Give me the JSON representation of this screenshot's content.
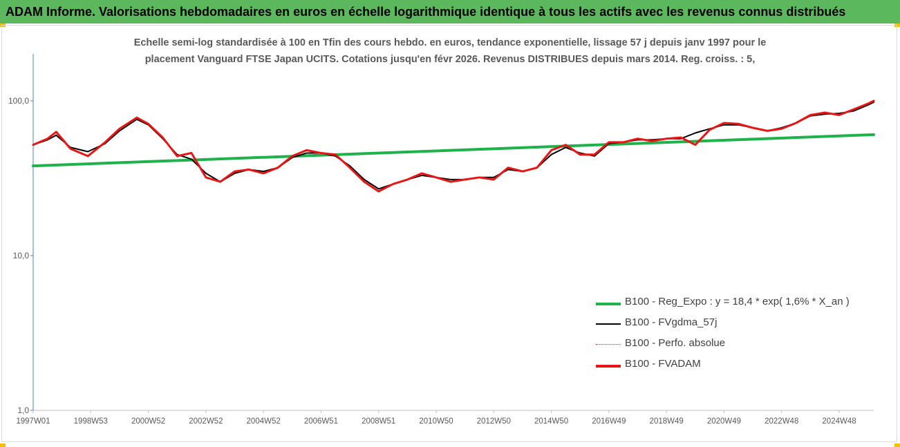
{
  "header": {
    "title": "ADAM Informe. Valorisations hebdomadaires en euros en échelle logarithmique identique à tous les actifs avec les revenus connus distribués"
  },
  "colors": {
    "header_bg": "#5cb85c",
    "corner_accent": "#f2c200",
    "trend": "#1db34a",
    "smoothed": "#000000",
    "perfo": "#d42020",
    "fvadam": "#e81515"
  },
  "chart_data": {
    "type": "line",
    "title_line1": "Echelle semi-log standardisée à 100 en Tfin des cours hebdo. en euros, tendance exponentielle, lissage 57 j depuis janv 1997 pour le",
    "title_line2": "placement Vanguard FTSE Japan UCITS. Cotations jusqu'en févr 2026. Revenus DISTRIBUES depuis mars 2014. Reg. croiss. : 5,",
    "y_scale": "log",
    "ylim": [
      1,
      100
    ],
    "y_ticks": [
      {
        "value": 100,
        "label": "100,0"
      },
      {
        "value": 10,
        "label": "10,0"
      },
      {
        "value": 1,
        "label": "1,0"
      }
    ],
    "xlim": [
      1997.0,
      2026.2
    ],
    "x_ticks": [
      {
        "value": 1997.0,
        "label": "1997W01"
      },
      {
        "value": 1999.0,
        "label": "1998W53"
      },
      {
        "value": 2001.0,
        "label": "2000W52"
      },
      {
        "value": 2003.0,
        "label": "2002W52"
      },
      {
        "value": 2005.0,
        "label": "2004W52"
      },
      {
        "value": 2007.0,
        "label": "2006W51"
      },
      {
        "value": 2009.0,
        "label": "2008W51"
      },
      {
        "value": 2011.0,
        "label": "2010W50"
      },
      {
        "value": 2013.0,
        "label": "2012W50"
      },
      {
        "value": 2015.0,
        "label": "2014W50"
      },
      {
        "value": 2017.0,
        "label": "2016W49"
      },
      {
        "value": 2019.0,
        "label": "2018W49"
      },
      {
        "value": 2021.0,
        "label": "2020W49"
      },
      {
        "value": 2023.0,
        "label": "2022W48"
      },
      {
        "value": 2025.0,
        "label": "2024W48"
      }
    ],
    "grid": false,
    "legend_position": "lower-right",
    "series": [
      {
        "name": "B100 - Reg_Expo : y = 18,4 * exp( 1,6% *  X_an )",
        "key": "trend",
        "style": "thick",
        "x": [
          1997.0,
          2026.2
        ],
        "y": [
          38.0,
          60.5
        ]
      },
      {
        "name": "B100 - FVgdma_57j",
        "key": "smoothed",
        "style": "thin",
        "x": [
          1997.0,
          1997.5,
          1997.8,
          1998.3,
          1998.9,
          1999.5,
          2000.0,
          2000.6,
          2001.0,
          2001.5,
          2002.0,
          2002.5,
          2003.0,
          2003.5,
          2004.0,
          2004.5,
          2005.0,
          2005.5,
          2006.0,
          2006.5,
          2007.0,
          2007.5,
          2008.0,
          2008.5,
          2009.0,
          2009.5,
          2010.0,
          2010.5,
          2011.0,
          2011.5,
          2012.0,
          2012.5,
          2013.0,
          2013.5,
          2014.0,
          2014.5,
          2015.0,
          2015.5,
          2016.0,
          2016.5,
          2017.0,
          2017.5,
          2018.0,
          2018.5,
          2019.0,
          2019.5,
          2020.0,
          2020.5,
          2021.0,
          2021.5,
          2022.0,
          2022.5,
          2023.0,
          2023.5,
          2024.0,
          2024.5,
          2025.0,
          2025.5,
          2026.0,
          2026.2
        ],
        "y": [
          52,
          56,
          60,
          50,
          47,
          53,
          64,
          76,
          70,
          57,
          45,
          42,
          34,
          30,
          34,
          36,
          35,
          37,
          43,
          46,
          46,
          44,
          38,
          31,
          27,
          29,
          31,
          33,
          32,
          31,
          31,
          32,
          32,
          36,
          35,
          37,
          45,
          50,
          46,
          44,
          53,
          54,
          56,
          56,
          57,
          57,
          62,
          66,
          70,
          70,
          67,
          64,
          67,
          72,
          80,
          82,
          83,
          86,
          94,
          98
        ]
      },
      {
        "name": "B100 - Perfo. absolue",
        "key": "perfo",
        "style": "dotted",
        "x": [
          1997.0,
          1997.5,
          1997.8,
          1998.3,
          1998.9,
          1999.5,
          2000.0,
          2000.6,
          2001.0,
          2001.5,
          2002.0,
          2002.5,
          2003.0,
          2003.5,
          2004.0,
          2004.5,
          2005.0,
          2005.5,
          2006.0,
          2006.5,
          2007.0,
          2007.5,
          2008.0,
          2008.5,
          2009.0,
          2009.5,
          2010.0,
          2010.5,
          2011.0,
          2011.5,
          2012.0,
          2012.5,
          2013.0,
          2013.5,
          2014.0,
          2014.5,
          2015.0,
          2015.5,
          2016.0,
          2016.5,
          2017.0,
          2017.5,
          2018.0,
          2018.5,
          2019.0,
          2019.5,
          2020.0,
          2020.5,
          2021.0,
          2021.5,
          2022.0,
          2022.5,
          2023.0,
          2023.5,
          2024.0,
          2024.5,
          2025.0,
          2025.5,
          2026.0,
          2026.2
        ],
        "y": [
          52,
          57,
          63,
          49,
          44,
          54,
          66,
          78,
          71,
          58,
          44,
          46,
          32,
          30,
          35,
          36,
          34,
          37,
          44,
          48,
          46,
          45,
          37,
          30,
          26,
          29,
          31,
          34,
          32,
          30,
          31,
          32,
          31,
          37,
          35,
          37,
          48,
          52,
          45,
          45,
          54,
          54,
          57,
          55,
          57,
          58,
          52,
          65,
          72,
          71,
          67,
          64,
          66,
          72,
          81,
          84,
          81,
          88,
          96,
          100
        ]
      },
      {
        "name": "B100 - FVADAM",
        "key": "fvadam",
        "style": "thick",
        "x": [
          1997.0,
          1997.5,
          1997.8,
          1998.3,
          1998.9,
          1999.5,
          2000.0,
          2000.6,
          2001.0,
          2001.5,
          2002.0,
          2002.5,
          2003.0,
          2003.5,
          2004.0,
          2004.5,
          2005.0,
          2005.5,
          2006.0,
          2006.5,
          2007.0,
          2007.5,
          2008.0,
          2008.5,
          2009.0,
          2009.5,
          2010.0,
          2010.5,
          2011.0,
          2011.5,
          2012.0,
          2012.5,
          2013.0,
          2013.5,
          2014.0,
          2014.5,
          2015.0,
          2015.5,
          2016.0,
          2016.5,
          2017.0,
          2017.5,
          2018.0,
          2018.5,
          2019.0,
          2019.5,
          2020.0,
          2020.5,
          2021.0,
          2021.5,
          2022.0,
          2022.5,
          2023.0,
          2023.5,
          2024.0,
          2024.5,
          2025.0,
          2025.5,
          2026.0,
          2026.2
        ],
        "y": [
          52,
          57,
          63,
          49,
          44,
          54,
          66,
          78,
          71,
          58,
          44,
          46,
          32,
          30,
          35,
          36,
          34,
          37,
          44,
          48,
          46,
          45,
          37,
          30,
          26,
          29,
          31,
          34,
          32,
          30,
          31,
          32,
          31,
          37,
          35,
          37,
          48,
          52,
          45,
          45,
          54,
          54,
          57,
          55,
          57,
          58,
          52,
          65,
          72,
          71,
          67,
          64,
          66,
          72,
          81,
          84,
          81,
          88,
          96,
          100
        ]
      }
    ]
  }
}
